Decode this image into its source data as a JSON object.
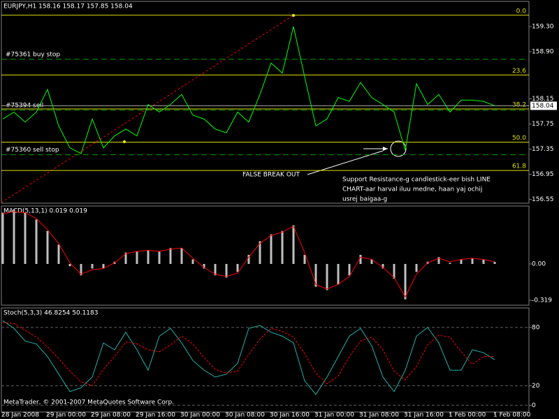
{
  "chart_data": [
    {
      "type": "line",
      "title": "EURJPY,H1  158.16 158.17 157.85 158.04",
      "color": "#00ff00",
      "values": [
        157.83,
        157.94,
        157.78,
        157.94,
        158.3,
        157.72,
        157.37,
        157.28,
        157.83,
        157.37,
        157.56,
        157.67,
        157.56,
        158.06,
        157.94,
        158.06,
        158.22,
        157.89,
        157.83,
        157.67,
        157.61,
        157.94,
        157.78,
        158.22,
        158.72,
        158.56,
        159.3,
        158.5,
        157.72,
        157.83,
        158.17,
        158.11,
        158.41,
        158.17,
        158.06,
        157.94,
        157.33,
        158.39,
        158.06,
        158.22,
        157.94,
        158.13,
        158.13,
        158.11,
        158.04
      ],
      "ylim": [
        156.49,
        159.7
      ],
      "yticks": [
        {
          "value": 159.3,
          "label": "159.30"
        },
        {
          "value": 158.9,
          "label": "158.90"
        },
        158.15,
        157.75,
        157.35,
        156.95,
        156.55
      ],
      "current_price": 158.04,
      "fibo": [
        {
          "value": 159.48,
          "label": "0.0"
        },
        {
          "value": 158.53,
          "label": "23.6"
        },
        {
          "value": 157.99,
          "label": "38.2"
        },
        {
          "value": 157.46,
          "label": "50.0"
        },
        {
          "value": 157.01,
          "label": "61.8"
        }
      ],
      "orders": [
        {
          "label": "#75361 buy stop",
          "value": 158.78
        },
        {
          "label": "#75394 sell",
          "value": 157.97
        },
        {
          "label": "#75360 sell stop",
          "value": 157.26
        }
      ],
      "annotations": [
        "FALSE BREAK OUT",
        "Support Resistance-g candlestick-eer bish LINE",
        "CHART-aar harval iluu medne, haan yaj ochij",
        "usrej baigaa-g"
      ]
    },
    {
      "type": "macd",
      "title": "MACD(5,13,1) 0.019 0.019",
      "series": [
        {
          "color": "#c0c0c0",
          "values": [
            0.45,
            0.48,
            0.45,
            0.39,
            0.29,
            0.17,
            -0.02,
            -0.1,
            -0.04,
            -0.04,
            0.02,
            0.1,
            0.11,
            0.12,
            0.11,
            0.14,
            0.14,
            0.04,
            -0.04,
            -0.1,
            -0.12,
            -0.07,
            0.08,
            0.2,
            0.26,
            0.29,
            0.34,
            0.08,
            -0.2,
            -0.23,
            -0.18,
            -0.1,
            0.08,
            0.04,
            -0.04,
            -0.13,
            -0.31,
            -0.07,
            0.02,
            0.06,
            0.01,
            0.04,
            0.05,
            0.04,
            0.019
          ]
        },
        {
          "color": "#ff0000",
          "values": [
            0.44,
            0.46,
            0.45,
            0.4,
            0.3,
            0.18,
            0.01,
            -0.09,
            -0.05,
            -0.04,
            0.01,
            0.09,
            0.11,
            0.12,
            0.11,
            0.13,
            0.14,
            0.05,
            -0.03,
            -0.09,
            -0.11,
            -0.08,
            0.06,
            0.18,
            0.25,
            0.28,
            0.33,
            0.1,
            -0.18,
            -0.22,
            -0.18,
            -0.11,
            0.06,
            0.04,
            -0.03,
            -0.12,
            -0.29,
            -0.09,
            0.01,
            0.05,
            0.02,
            0.04,
            0.05,
            0.04,
            0.019
          ]
        }
      ],
      "ylim": [
        -0.362,
        0.509
      ],
      "yticks": [
        {
          "value": 0,
          "label": "0.00"
        },
        -0.319
      ]
    },
    {
      "type": "line",
      "title": "Stoch(5,3,3) 46.8254 50.1183",
      "series": [
        {
          "color": "#20b2aa",
          "values": [
            87,
            79,
            66,
            63,
            50,
            32,
            14,
            18,
            29,
            64,
            57,
            75,
            57,
            36,
            71,
            79,
            64,
            46,
            36,
            29,
            32,
            43,
            79,
            82,
            75,
            71,
            64,
            25,
            11,
            29,
            50,
            71,
            79,
            61,
            29,
            14,
            36,
            71,
            80,
            64,
            36,
            36,
            57,
            54,
            46.83
          ]
        },
        {
          "color": "#ff0000",
          "dashed": true,
          "values": [
            85,
            84,
            77,
            70,
            60,
            48,
            35,
            24,
            20,
            37,
            50,
            65,
            63,
            57,
            55,
            62,
            71,
            63,
            49,
            37,
            33,
            35,
            52,
            68,
            79,
            76,
            70,
            53,
            33,
            22,
            30,
            50,
            66,
            70,
            57,
            35,
            26,
            40,
            62,
            72,
            70,
            55,
            42,
            50,
            50.12
          ]
        }
      ],
      "ylim": [
        -7,
        100
      ],
      "yticks": [
        80,
        20,
        0
      ],
      "categories": [
        "28 Jan 2008",
        null,
        null,
        null,
        "29 Jan 00:00",
        null,
        null,
        null,
        "29 Jan 08:00",
        null,
        null,
        null,
        "29 Jan 16:00",
        null,
        null,
        null,
        "30 Jan 00:00",
        null,
        null,
        null,
        "30 Jan 08:00",
        null,
        null,
        null,
        "30 Jan 16:00",
        null,
        null,
        null,
        "31 Jan 00:00",
        null,
        null,
        null,
        "31 Jan 08:00",
        null,
        null,
        null,
        "31 Jan 16:00",
        null,
        null,
        null,
        "1 Feb 00:00",
        null,
        null,
        null,
        "1 Feb 08:00"
      ],
      "footer": "MetaTrader, © 2001-2007 MetaQuotes Software Corp."
    }
  ]
}
